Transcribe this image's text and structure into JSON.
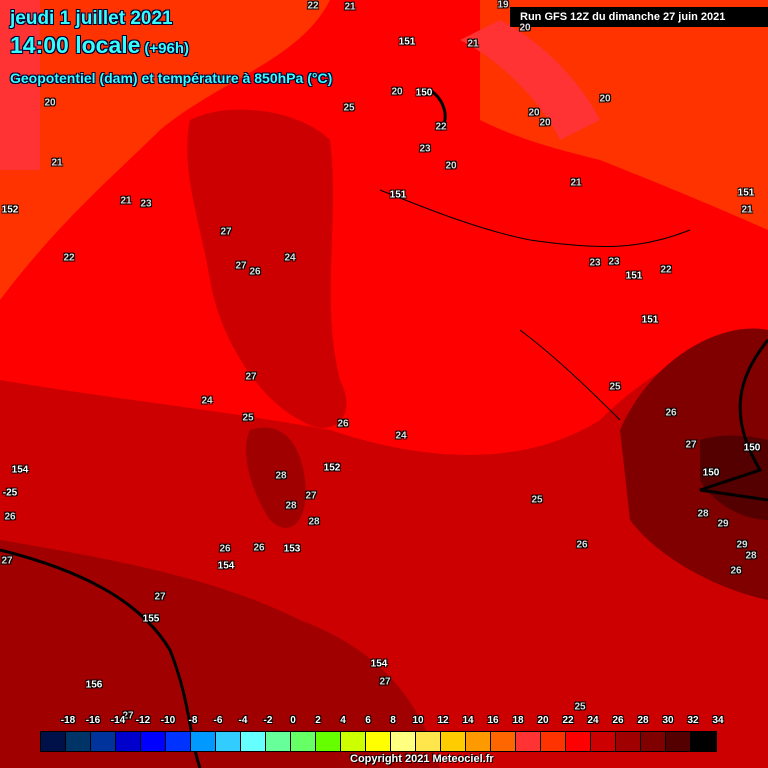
{
  "header": {
    "date": "jeudi 1 juillet 2021",
    "time": "14:00 locale",
    "lead": "(+96h)",
    "parameter": "Geopotentiel (dam) et température à 850hPa (°C)",
    "run": "Run GFS 12Z du dimanche 27 juin 2021"
  },
  "map_labels": [
    "22",
    "21",
    "19",
    "20",
    "151",
    "21",
    "20",
    "20",
    "150",
    "25",
    "22",
    "23",
    "20",
    "20",
    "20",
    "20",
    "21",
    "21",
    "23",
    "151",
    "21",
    "151",
    "21",
    "152",
    "22",
    "27",
    "27",
    "26",
    "24",
    "23",
    "23",
    "151",
    "22",
    "151",
    "27",
    "24",
    "25",
    "25",
    "26",
    "26",
    "24",
    "27",
    "150",
    "154",
    "152",
    "28",
    "150",
    "-25",
    "27",
    "28",
    "25",
    "26",
    "28",
    "28",
    "29",
    "29",
    "28",
    "26",
    "26",
    "153",
    "26",
    "154",
    "27",
    "26",
    "27",
    "155",
    "154",
    "27",
    "156",
    "25",
    "27"
  ],
  "legend": {
    "labels": [
      "-18",
      "-16",
      "-14",
      "-12",
      "-10",
      "-8",
      "-6",
      "-4",
      "-2",
      "0",
      "2",
      "4",
      "6",
      "8",
      "10",
      "12",
      "14",
      "16",
      "18",
      "20",
      "22",
      "24",
      "26",
      "28",
      "30",
      "32",
      "34"
    ],
    "colors": [
      "#001048",
      "#003366",
      "#00339c",
      "#0000cc",
      "#0000ff",
      "#0033ff",
      "#0099ff",
      "#33ccff",
      "#66ffff",
      "#66ff99",
      "#66ff66",
      "#66ff00",
      "#ccff00",
      "#ffff00",
      "#ffff80",
      "#ffe64d",
      "#ffcc00",
      "#ff9900",
      "#ff6600",
      "#ff3333",
      "#ff3300",
      "#ff0000",
      "#cc0000",
      "#a00000",
      "#800000",
      "#550000",
      "#000000"
    ]
  },
  "copyright": "Copyright 2021 Meteociel.fr"
}
